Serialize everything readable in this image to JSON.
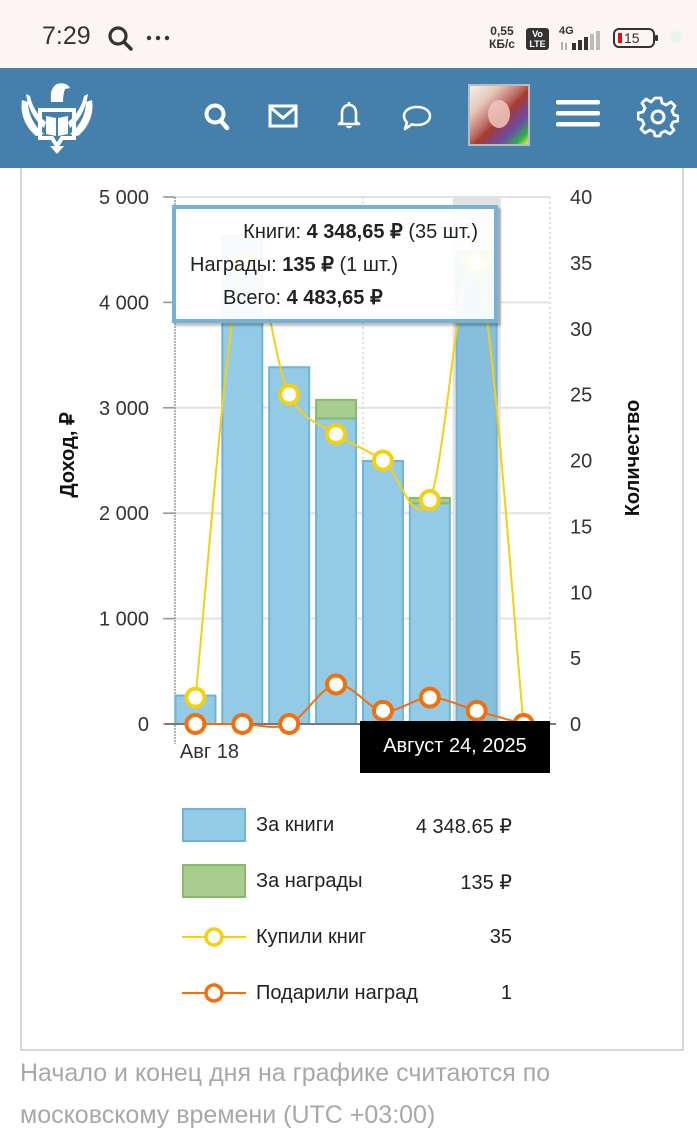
{
  "status_bar": {
    "time": "7:29",
    "speed_value": "0,55",
    "speed_unit": "КБ/с",
    "volte": "Vo LTE",
    "network": "4G",
    "battery": "15",
    "icons": [
      "search-icon",
      "more-dots-icon",
      "signal-icon",
      "battery-icon"
    ]
  },
  "header": {
    "logo": "eagle-book-logo",
    "icons": [
      "search-icon",
      "mail-icon",
      "bell-icon",
      "chat-icon",
      "avatar",
      "menu-icon",
      "gear-icon"
    ],
    "color": "#4580ad"
  },
  "tooltip": {
    "books_label": "Книги:",
    "books_value": "4 348,65 ₽",
    "books_count": "(35 шт.)",
    "awards_label": "Награды:",
    "awards_value": "135 ₽",
    "awards_count": "(1 шт.)",
    "total_label": "Всего:",
    "total_value": "4 483,65 ₽"
  },
  "date_tooltip": "Август 24, 2025",
  "legend": [
    {
      "label": "За книги",
      "value": "4 348.65 ₽",
      "type": "bar",
      "color": "#93cae6"
    },
    {
      "label": "За награды",
      "value": "135 ₽",
      "type": "bar",
      "color": "#a8cd8e"
    },
    {
      "label": "Купили книг",
      "value": "35",
      "type": "line",
      "color": "#f5d010"
    },
    {
      "label": "Подарили наград",
      "value": "1",
      "type": "line",
      "color": "#f07010"
    }
  ],
  "footnote": "Начало и конец дня на графике считаются по московскому времени (UTC +03:00)",
  "chart_data": {
    "type": "bar",
    "title": "",
    "x": [
      "2025-08-18",
      "2025-08-19",
      "2025-08-20",
      "2025-08-21",
      "2025-08-22",
      "2025-08-23",
      "2025-08-24",
      "2025-08-25"
    ],
    "x_tick_labels": [
      "Авг 18"
    ],
    "ylabel": "Доход, ₽",
    "ylabel_right": "Количество",
    "ylim": [
      0,
      5000
    ],
    "ylim_right": [
      0,
      40
    ],
    "yticks": [
      "0",
      "1 000",
      "2 000",
      "3 000",
      "4 000",
      "5 000"
    ],
    "yticks_right": [
      "0",
      "5",
      "10",
      "15",
      "20",
      "25",
      "30",
      "35",
      "40"
    ],
    "grid": true,
    "highlighted": "2025-08-24",
    "series": [
      {
        "name": "За книги",
        "type": "bar",
        "axis": "left",
        "color": "#93cae6",
        "stack": "income",
        "values": [
          270,
          4630,
          3385,
          2900,
          2495,
          2095,
          4348.65,
          0
        ]
      },
      {
        "name": "За награды",
        "type": "bar",
        "axis": "left",
        "color": "#a8cd8e",
        "stack": "income",
        "values": [
          0,
          0,
          0,
          175,
          0,
          50,
          135,
          0
        ]
      },
      {
        "name": "Купили книг",
        "type": "line",
        "axis": "right",
        "color": "#f5d010",
        "values": [
          2,
          35,
          25,
          22,
          20,
          17,
          35,
          0
        ]
      },
      {
        "name": "Подарили наград",
        "type": "line",
        "axis": "right",
        "color": "#f07010",
        "values": [
          0,
          0,
          0,
          3,
          1,
          2,
          1,
          0
        ]
      }
    ]
  }
}
